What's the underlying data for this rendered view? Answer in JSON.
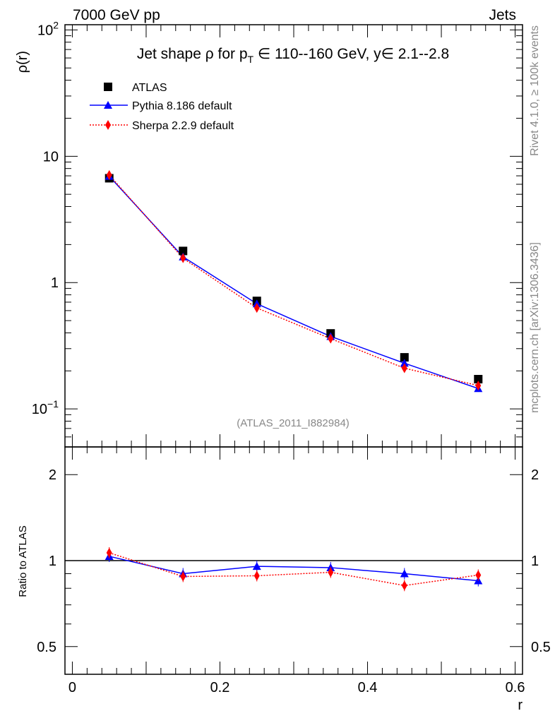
{
  "header": {
    "left": "7000 GeV pp",
    "right": "Jets"
  },
  "side": {
    "rivet": "Rivet 4.1.0, ≥ 100k events",
    "mcplots": "mcplots.cern.ch [arXiv:1306.3436]"
  },
  "chart_data": [
    {
      "type": "line",
      "title": "Jet shape ρ for p_T ∈ 110--160 GeV, y∈ 2.1--2.8",
      "title_parts": {
        "a": "Jet shape ρ for p",
        "sub": "T",
        "b": " ∈ 110--160 GeV, y∈ 2.1--2.8"
      },
      "ylabel": "ρ(r)",
      "yscale": "log",
      "ylim": [
        0.05,
        110
      ],
      "xlim": [
        -0.01,
        0.61
      ],
      "ytick_labels": [
        {
          "v": 0.1,
          "base": "10",
          "exp": "−1"
        },
        {
          "v": 1,
          "base": "1",
          "exp": ""
        },
        {
          "v": 10,
          "base": "10",
          "exp": ""
        },
        {
          "v": 100,
          "base": "10",
          "exp": "2"
        }
      ],
      "watermark": "(ATLAS_2011_I882984)",
      "legend_position": "top-left",
      "x": [
        0.05,
        0.15,
        0.25,
        0.35,
        0.45,
        0.55
      ],
      "series": [
        {
          "name": "ATLAS",
          "color": "#000000",
          "marker": "square",
          "values": [
            6.7,
            1.78,
            0.716,
            0.396,
            0.256,
            0.172
          ]
        },
        {
          "name": "Pythia 8.186 default",
          "color": "#0000ff",
          "marker": "triangle",
          "line": "solid",
          "values": [
            6.95,
            1.6,
            0.68,
            0.375,
            0.23,
            0.145
          ]
        },
        {
          "name": "Sherpa 2.2.9 default",
          "color": "#ff0000",
          "marker": "diamond",
          "line": "dotted",
          "values": [
            7.1,
            1.56,
            0.63,
            0.36,
            0.21,
            0.153
          ]
        }
      ]
    },
    {
      "type": "line",
      "ylabel": "Ratio to ATLAS",
      "xlabel": "r",
      "yscale": "log",
      "ylim": [
        0.4,
        2.5
      ],
      "xlim": [
        -0.01,
        0.61
      ],
      "ytick_labels": [
        "0.5",
        "1",
        "2"
      ],
      "xtick_labels": [
        "0",
        "0.2",
        "0.4",
        "0.6"
      ],
      "x": [
        0.05,
        0.15,
        0.25,
        0.35,
        0.45,
        0.55
      ],
      "series": [
        {
          "name": "Pythia 8.186 default",
          "color": "#0000ff",
          "values": [
            1.035,
            0.9,
            0.955,
            0.945,
            0.9,
            0.85
          ]
        },
        {
          "name": "Sherpa 2.2.9 default",
          "color": "#ff0000",
          "values": [
            1.065,
            0.88,
            0.885,
            0.91,
            0.818,
            0.89
          ]
        }
      ]
    }
  ]
}
